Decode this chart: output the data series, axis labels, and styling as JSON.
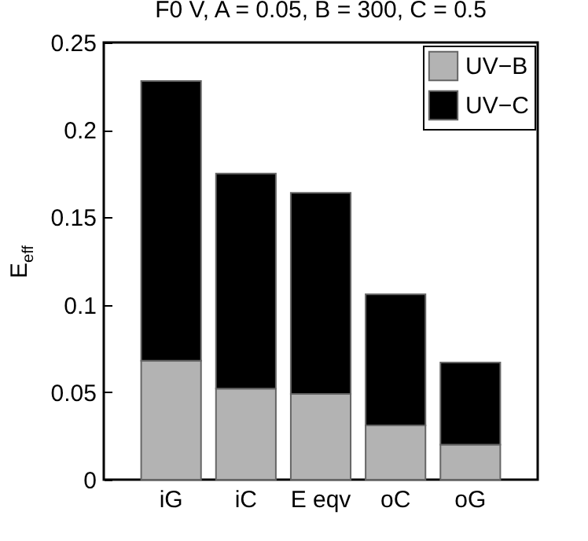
{
  "chart_data": {
    "type": "bar",
    "title": "F0 V, A = 0.05, B = 300, C = 0.5",
    "ylabel": "E$_{eff}$",
    "categories": [
      "iG",
      "iC",
      "E eqv",
      "oC",
      "oG"
    ],
    "stacked": true,
    "series": [
      {
        "name": "UV−B",
        "color": "#b3b3b3",
        "values": [
          0.068,
          0.052,
          0.049,
          0.031,
          0.02
        ]
      },
      {
        "name": "UV−C",
        "color": "#000000",
        "values": [
          0.16,
          0.123,
          0.115,
          0.075,
          0.047
        ]
      }
    ],
    "ylim": [
      0,
      0.25
    ],
    "yticks": [
      0,
      0.05,
      0.1,
      0.15,
      0.2,
      0.25
    ],
    "grid": false,
    "legend": "top right"
  }
}
